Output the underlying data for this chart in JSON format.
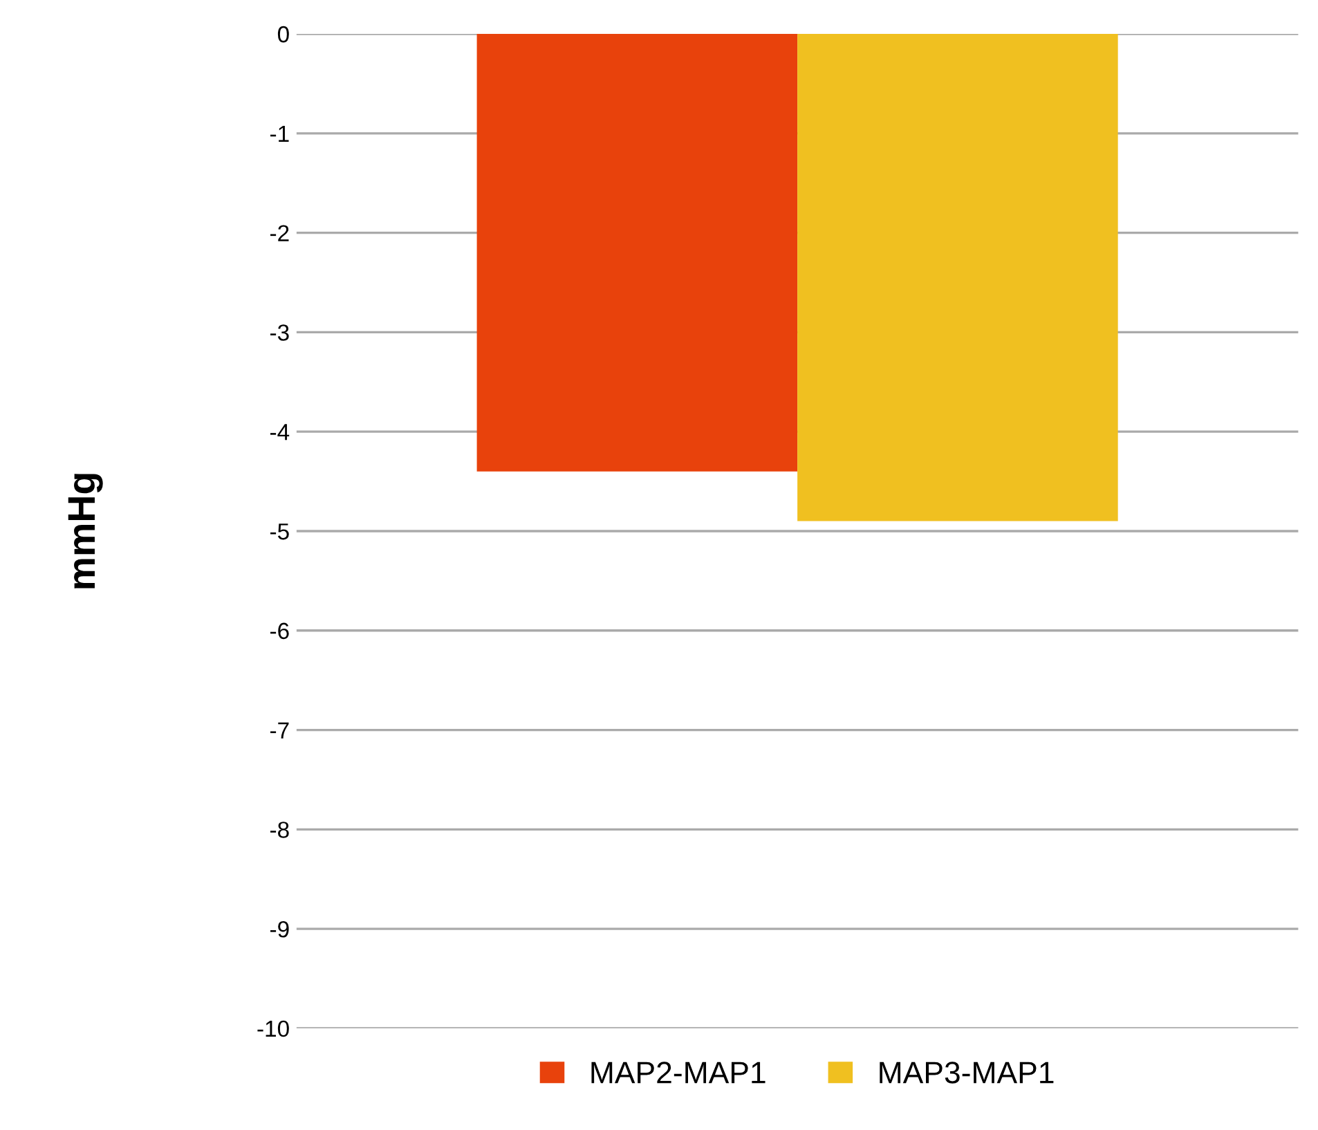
{
  "chart_data": {
    "type": "bar",
    "ylabel": "mmHg",
    "categories": [
      null
    ],
    "series": [
      {
        "name": "MAP2-MAP1",
        "color": "#e8420c",
        "values": [
          -4.4
        ]
      },
      {
        "name": "MAP3-MAP1",
        "color": "#f0c020",
        "values": [
          -4.9
        ]
      }
    ],
    "ylim": [
      -10,
      0
    ],
    "yticks": [
      0,
      -1,
      -2,
      -3,
      -4,
      -5,
      -6,
      -7,
      -8,
      -9,
      -10
    ],
    "grid": "y",
    "legend": "bottom"
  }
}
